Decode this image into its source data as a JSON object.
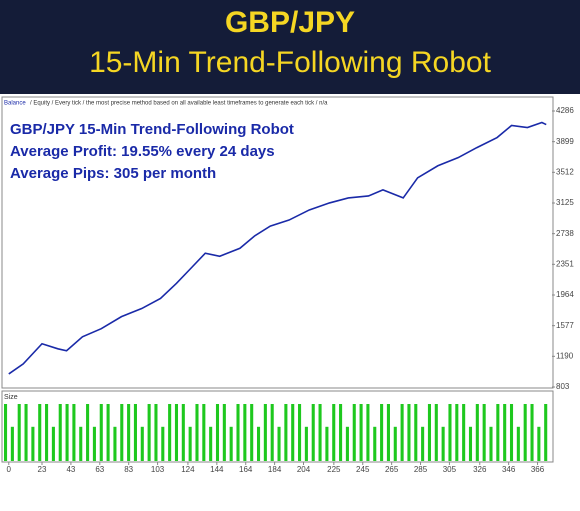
{
  "header": {
    "title": "GBP/JPY",
    "subtitle": "15-Min Trend-Following Robot"
  },
  "chart_data": [
    {
      "type": "line",
      "info": "/ Equity / Every tick / the most precise method based on all available least timeframes to generate each tick / n/a",
      "annotations": [
        "GBP/JPY 15-Min Trend-Following Robot",
        "Average Profit: 19.55% every 24 days",
        "Average Pips: 305 per month"
      ],
      "x": [
        0,
        10,
        23,
        34,
        40,
        51,
        64,
        78,
        92,
        105,
        116,
        126,
        136,
        146,
        160,
        170,
        181,
        194,
        208,
        222,
        235,
        249,
        259,
        273,
        283,
        297,
        311,
        324,
        338,
        348,
        359,
        369,
        372
      ],
      "series": [
        {
          "name": "Balance",
          "color": "#1a2aa8",
          "values": [
            968,
            1095,
            1349,
            1285,
            1260,
            1437,
            1539,
            1691,
            1793,
            1920,
            2110,
            2300,
            2491,
            2453,
            2554,
            2707,
            2834,
            2910,
            3037,
            3126,
            3189,
            3214,
            3291,
            3189,
            3443,
            3595,
            3697,
            3824,
            3951,
            4103,
            4077,
            4141,
            4115
          ]
        }
      ],
      "xlim": [
        -4,
        376
      ],
      "ylim": [
        803,
        4450
      ],
      "xticks": [
        0,
        23,
        43,
        63,
        83,
        103,
        124,
        144,
        164,
        184,
        204,
        225,
        245,
        265,
        285,
        305,
        326,
        346,
        366
      ],
      "yticks": [
        803,
        1190,
        1577,
        1964,
        2351,
        2738,
        3125,
        3512,
        3899,
        4286
      ]
    },
    {
      "type": "bar",
      "title": "Size",
      "color": "#1ec81e",
      "ylim": [
        0,
        1
      ],
      "values": [
        1,
        0.6,
        1,
        1,
        0.6,
        1,
        1,
        0.6,
        1,
        1,
        1,
        0.6,
        1,
        0.6,
        1,
        1,
        0.6,
        1,
        1,
        1,
        0.6,
        1,
        1,
        0.6,
        1,
        1,
        1,
        0.6,
        1,
        1,
        0.6,
        1,
        1,
        0.6,
        1,
        1,
        1,
        0.6,
        1,
        1,
        0.6,
        1,
        1,
        1,
        0.6,
        1,
        1,
        0.6,
        1,
        1,
        0.6,
        1,
        1,
        1,
        0.6,
        1,
        1,
        0.6,
        1,
        1,
        1,
        0.6,
        1,
        1,
        0.6,
        1,
        1,
        1,
        0.6,
        1,
        1,
        0.6,
        1,
        1,
        1,
        0.6,
        1,
        1,
        0.6,
        1
      ]
    }
  ]
}
